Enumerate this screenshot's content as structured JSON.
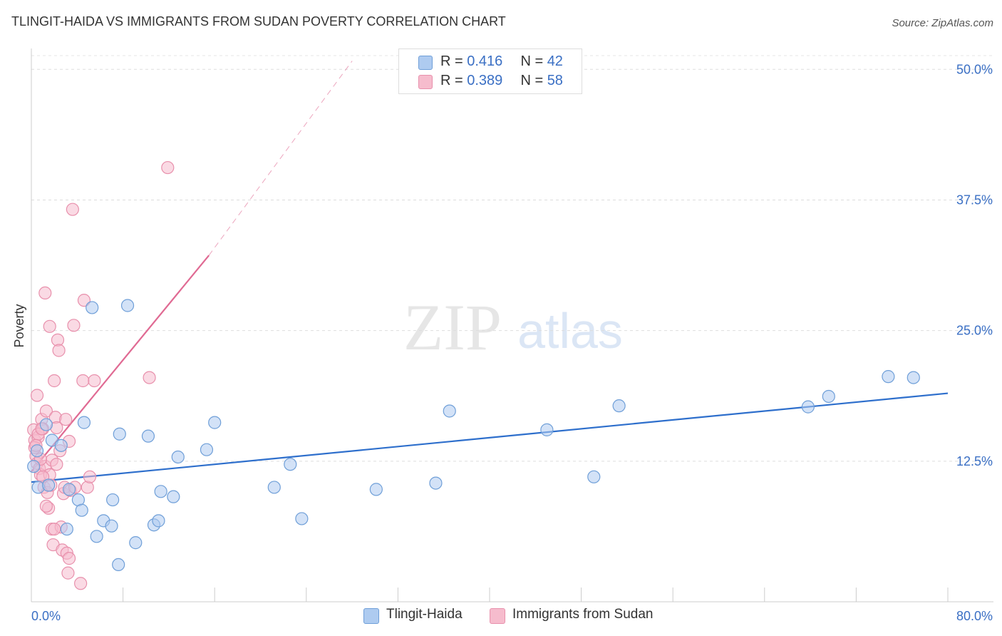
{
  "title": "TLINGIT-HAIDA VS IMMIGRANTS FROM SUDAN POVERTY CORRELATION CHART",
  "source": "Source: ZipAtlas.com",
  "watermark": {
    "zip": "ZIP",
    "atlas": "atlas"
  },
  "legend_top": [
    {
      "r_label": "R =",
      "r_value": "0.416",
      "n_label": "N =",
      "n_value": "42"
    },
    {
      "r_label": "R =",
      "r_value": "0.389",
      "n_label": "N =",
      "n_value": "58"
    }
  ],
  "colors": {
    "blue_fill": "#aecbf0",
    "blue_stroke": "#6f9fd8",
    "blue_line": "#2e6fcc",
    "pink_fill": "#f6bccd",
    "pink_stroke": "#e890ac",
    "pink_line": "#e06a93",
    "axis_label": "#3a6fc4"
  },
  "chart_data": {
    "type": "scatter",
    "title": "TLINGIT-HAIDA VS IMMIGRANTS FROM SUDAN POVERTY CORRELATION CHART",
    "xlabel": "",
    "ylabel": "Poverty",
    "xlim": [
      0,
      80
    ],
    "ylim": [
      0,
      52
    ],
    "x_tick_labels": [
      {
        "value": 0,
        "label": "0.0%"
      },
      {
        "value": 80,
        "label": "80.0%"
      }
    ],
    "x_minor_ticks": [
      0,
      8,
      16,
      24,
      32,
      40,
      48,
      56,
      64,
      72,
      80
    ],
    "y_ticks": [
      {
        "value": 12.5,
        "label": "12.5%"
      },
      {
        "value": 25,
        "label": "25.0%"
      },
      {
        "value": 37.5,
        "label": "37.5%"
      },
      {
        "value": 50,
        "label": "50.0%"
      }
    ],
    "grid": true,
    "legend": "bottom-center",
    "series": [
      {
        "name": "Tlingit-Haida",
        "color": "blue",
        "points": [
          [
            0.5,
            13.5
          ],
          [
            1.3,
            16.0
          ],
          [
            1.8,
            14.5
          ],
          [
            2.6,
            14.0
          ],
          [
            0.6,
            10.0
          ],
          [
            3.3,
            9.8
          ],
          [
            4.1,
            8.8
          ],
          [
            4.4,
            7.8
          ],
          [
            4.6,
            16.2
          ],
          [
            3.1,
            6.0
          ],
          [
            5.3,
            27.2
          ],
          [
            5.7,
            5.3
          ],
          [
            6.3,
            6.8
          ],
          [
            7.0,
            6.3
          ],
          [
            7.1,
            8.8
          ],
          [
            7.7,
            15.1
          ],
          [
            7.6,
            2.6
          ],
          [
            8.4,
            27.4
          ],
          [
            9.1,
            4.7
          ],
          [
            10.2,
            14.9
          ],
          [
            10.7,
            6.4
          ],
          [
            11.1,
            6.8
          ],
          [
            11.3,
            9.6
          ],
          [
            12.4,
            9.1
          ],
          [
            12.8,
            12.9
          ],
          [
            15.3,
            13.6
          ],
          [
            16.0,
            16.2
          ],
          [
            21.2,
            10.0
          ],
          [
            22.6,
            12.2
          ],
          [
            23.6,
            7.0
          ],
          [
            30.1,
            9.8
          ],
          [
            35.3,
            10.4
          ],
          [
            36.5,
            17.3
          ],
          [
            45.0,
            15.5
          ],
          [
            49.1,
            11.0
          ],
          [
            51.3,
            17.8
          ],
          [
            67.8,
            17.7
          ],
          [
            69.6,
            18.7
          ],
          [
            74.8,
            20.6
          ],
          [
            77.0,
            20.5
          ],
          [
            0.2,
            12.0
          ],
          [
            1.5,
            10.2
          ]
        ]
      },
      {
        "name": "Immigrants from Sudan",
        "color": "pink",
        "points": [
          [
            0.2,
            15.5
          ],
          [
            0.3,
            14.5
          ],
          [
            0.4,
            13.0
          ],
          [
            0.5,
            12.3
          ],
          [
            0.6,
            14.8
          ],
          [
            0.7,
            11.8
          ],
          [
            0.8,
            11.2
          ],
          [
            0.9,
            16.5
          ],
          [
            1.0,
            15.6
          ],
          [
            1.1,
            10.0
          ],
          [
            1.2,
            12.0
          ],
          [
            1.3,
            17.3
          ],
          [
            1.4,
            9.5
          ],
          [
            1.5,
            8.0
          ],
          [
            1.6,
            11.2
          ],
          [
            1.7,
            10.2
          ],
          [
            1.8,
            6.0
          ],
          [
            1.9,
            4.5
          ],
          [
            2.0,
            20.2
          ],
          [
            2.1,
            16.7
          ],
          [
            2.2,
            15.7
          ],
          [
            2.3,
            24.1
          ],
          [
            2.4,
            23.1
          ],
          [
            2.5,
            13.5
          ],
          [
            2.6,
            6.2
          ],
          [
            2.7,
            4.0
          ],
          [
            2.8,
            9.4
          ],
          [
            2.9,
            10.0
          ],
          [
            3.0,
            16.5
          ],
          [
            3.1,
            3.7
          ],
          [
            3.2,
            1.8
          ],
          [
            3.3,
            14.4
          ],
          [
            3.4,
            9.7
          ],
          [
            3.6,
            36.6
          ],
          [
            3.7,
            25.5
          ],
          [
            3.8,
            10.0
          ],
          [
            4.3,
            0.8
          ],
          [
            4.5,
            20.2
          ],
          [
            4.6,
            27.9
          ],
          [
            4.9,
            10.0
          ],
          [
            5.1,
            11.0
          ],
          [
            5.5,
            20.2
          ],
          [
            10.3,
            20.5
          ],
          [
            11.9,
            40.6
          ],
          [
            1.2,
            28.6
          ],
          [
            1.6,
            25.4
          ],
          [
            0.5,
            18.8
          ],
          [
            0.3,
            13.8
          ],
          [
            0.6,
            15.1
          ],
          [
            0.9,
            15.6
          ],
          [
            1.0,
            11.0
          ],
          [
            1.3,
            8.2
          ],
          [
            1.8,
            12.6
          ],
          [
            2.2,
            12.2
          ],
          [
            0.4,
            14.0
          ],
          [
            0.8,
            12.7
          ],
          [
            2.0,
            6.0
          ],
          [
            3.3,
            3.2
          ]
        ]
      }
    ],
    "trend_lines": [
      {
        "series": "Tlingit-Haida",
        "x0": 0,
        "y0": 10.5,
        "x1": 80,
        "y1": 19.0,
        "style": "solid"
      },
      {
        "series": "Immigrants from Sudan",
        "x0": 0,
        "y0": 11.5,
        "x1": 15.5,
        "y1": 32.2,
        "style": "solid"
      },
      {
        "series": "Immigrants from Sudan",
        "x0": 15.5,
        "y0": 32.2,
        "x1": 28,
        "y1": 50.8,
        "style": "dashed"
      }
    ]
  }
}
